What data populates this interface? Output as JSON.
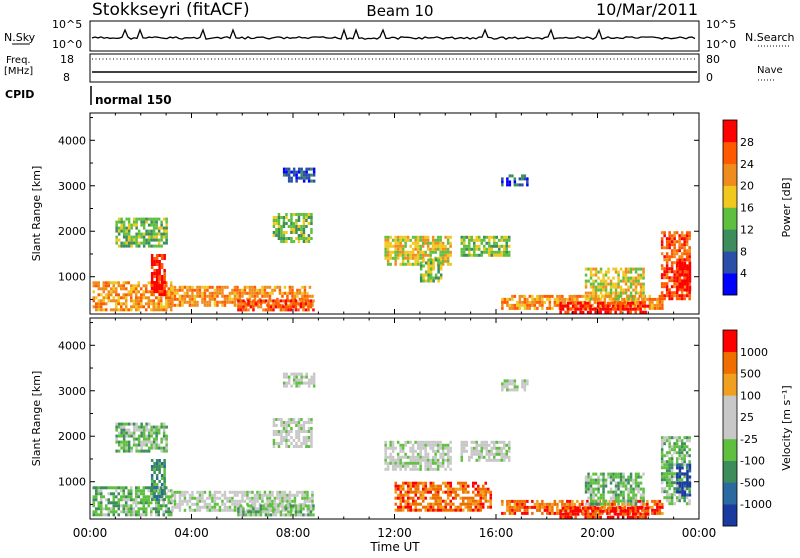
{
  "header": {
    "station": "Stokkseyri (fitACF)",
    "beam": "Beam 10",
    "date": "10/Mar/2011"
  },
  "strip": {
    "nsky_label": "N.Sky",
    "nsky_top": "10^5",
    "nsky_bottom": "10^0",
    "nsearch_label": "N.Search",
    "nsearch_top": "10^5",
    "nsearch_bottom": "10^0",
    "freq_label": "Freq.",
    "freq_unit": "[MHz]",
    "freq_top": "18",
    "freq_bottom": "8",
    "nave_label": "Nave",
    "nave_top": "80",
    "nave_bottom": "0",
    "cpid_label": "CPID",
    "cpid_value": "normal 150"
  },
  "chart_data": [
    {
      "type": "heatmap",
      "name": "power",
      "ylabel": "Slant Range [km]",
      "colorbar_label": "Power [dB]",
      "colorbar_ticks": [
        "28",
        "24",
        "20",
        "16",
        "12",
        "8",
        "4"
      ],
      "colors": [
        "#0000ff",
        "#2a4fa8",
        "#3c8c5c",
        "#5fbf3f",
        "#f0c81e",
        "#f08c1e",
        "#ff5a00",
        "#ff0000"
      ],
      "ylim": [
        180,
        4600
      ],
      "yticks": [
        1000,
        2000,
        3000,
        4000
      ],
      "patches": [
        {
          "t0": 0.1,
          "t1": 3.2,
          "r0": 250,
          "r1": 900,
          "level": 5
        },
        {
          "t0": 2.4,
          "t1": 2.9,
          "r0": 600,
          "r1": 1500,
          "level": 7
        },
        {
          "t0": 3.2,
          "t1": 8.8,
          "r0": 400,
          "r1": 800,
          "level": 5
        },
        {
          "t0": 5.8,
          "t1": 8.8,
          "r0": 250,
          "r1": 500,
          "level": 6
        },
        {
          "t0": 1.0,
          "t1": 3.0,
          "r0": 1700,
          "r1": 2300,
          "level": 3
        },
        {
          "t0": 7.2,
          "t1": 8.7,
          "r0": 1800,
          "r1": 2400,
          "level": 3
        },
        {
          "t0": 7.6,
          "t1": 8.8,
          "r0": 3100,
          "r1": 3400,
          "level": 1
        },
        {
          "t0": 11.6,
          "t1": 14.2,
          "r0": 1300,
          "r1": 1900,
          "level": 4
        },
        {
          "t0": 14.6,
          "t1": 16.5,
          "r0": 1500,
          "r1": 1900,
          "level": 3
        },
        {
          "t0": 16.2,
          "t1": 22.6,
          "r0": 300,
          "r1": 600,
          "level": 5
        },
        {
          "t0": 18.5,
          "t1": 22.0,
          "r0": 250,
          "r1": 450,
          "level": 7
        },
        {
          "t0": 19.5,
          "t1": 21.8,
          "r0": 500,
          "r1": 1200,
          "level": 4
        },
        {
          "t0": 22.5,
          "t1": 23.6,
          "r0": 500,
          "r1": 2000,
          "level": 6
        },
        {
          "t0": 23.1,
          "t1": 23.6,
          "r0": 700,
          "r1": 1400,
          "level": 7
        },
        {
          "t0": 13.0,
          "t1": 13.8,
          "r0": 900,
          "r1": 1400,
          "level": 3
        },
        {
          "t0": 16.2,
          "t1": 17.2,
          "r0": 3000,
          "r1": 3250,
          "level": 1
        }
      ]
    },
    {
      "type": "heatmap",
      "name": "velocity",
      "ylabel": "Slant Range [km]",
      "colorbar_label": "Velocity [m s⁻¹]",
      "colorbar_ticks": [
        "1000",
        "500",
        "100",
        "25",
        "-25",
        "-100",
        "-500",
        "-1000"
      ],
      "colors": [
        "#1a3aa0",
        "#2a6aa0",
        "#3c8c5c",
        "#5fbf3f",
        "#c8c8c8",
        "#c8c8c8",
        "#f0a01e",
        "#f06e00",
        "#ff0000"
      ],
      "ylim": [
        180,
        4600
      ],
      "yticks": [
        1000,
        2000,
        3000,
        4000
      ],
      "patches": [
        {
          "t0": 0.1,
          "t1": 3.2,
          "r0": 250,
          "r1": 900,
          "level": 3
        },
        {
          "t0": 2.4,
          "t1": 2.9,
          "r0": 600,
          "r1": 1500,
          "level": 2
        },
        {
          "t0": 3.2,
          "t1": 8.8,
          "r0": 400,
          "r1": 800,
          "level": 4
        },
        {
          "t0": 5.8,
          "t1": 8.8,
          "r0": 250,
          "r1": 500,
          "level": 3
        },
        {
          "t0": 1.0,
          "t1": 3.0,
          "r0": 1700,
          "r1": 2300,
          "level": 3
        },
        {
          "t0": 7.2,
          "t1": 8.7,
          "r0": 1800,
          "r1": 2400,
          "level": 4
        },
        {
          "t0": 7.6,
          "t1": 8.8,
          "r0": 3100,
          "r1": 3400,
          "level": 4
        },
        {
          "t0": 11.6,
          "t1": 14.2,
          "r0": 1300,
          "r1": 1900,
          "level": 4
        },
        {
          "t0": 14.6,
          "t1": 16.5,
          "r0": 1500,
          "r1": 1900,
          "level": 4
        },
        {
          "t0": 12.0,
          "t1": 15.8,
          "r0": 400,
          "r1": 1000,
          "level": 7
        },
        {
          "t0": 16.2,
          "t1": 22.6,
          "r0": 300,
          "r1": 600,
          "level": 7
        },
        {
          "t0": 18.5,
          "t1": 22.0,
          "r0": 250,
          "r1": 450,
          "level": 8
        },
        {
          "t0": 19.5,
          "t1": 21.8,
          "r0": 500,
          "r1": 1200,
          "level": 3
        },
        {
          "t0": 22.5,
          "t1": 23.6,
          "r0": 500,
          "r1": 2000,
          "level": 3
        },
        {
          "t0": 23.1,
          "t1": 23.6,
          "r0": 700,
          "r1": 1400,
          "level": 0
        },
        {
          "t0": 16.2,
          "t1": 17.2,
          "r0": 3000,
          "r1": 3250,
          "level": 4
        }
      ]
    }
  ],
  "time_axis": {
    "ticks": [
      "00:00",
      "04:00",
      "08:00",
      "12:00",
      "16:00",
      "20:00",
      "00:00"
    ],
    "xlabel": "Time UT",
    "xlim": [
      0,
      24
    ]
  }
}
